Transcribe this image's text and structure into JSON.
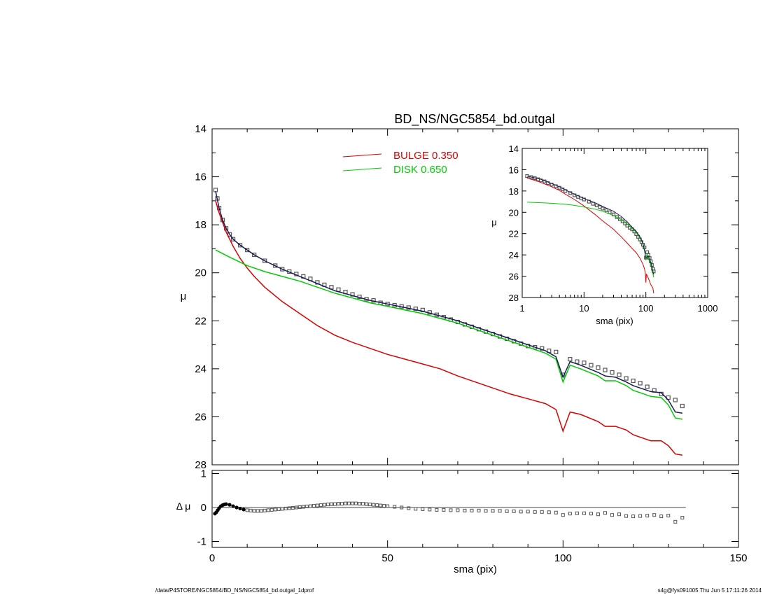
{
  "title": "BD_NS/NGC5854_bd.outgal",
  "footer": {
    "left": "/data/P4STORE/NGC5854/BD_NS/NGC5854_bd.outgal_1dprof",
    "right": "s4g@fys091005  Thu Jun  5 17:11:26 2014"
  },
  "chart_data": [
    {
      "type": "line",
      "panel": "main",
      "title": "BD_NS/NGC5854_bd.outgal",
      "xlabel": "",
      "ylabel": "μ",
      "xlim": [
        0,
        150
      ],
      "ylim": [
        28,
        14
      ],
      "y_inverted": true,
      "yticks": [
        14,
        16,
        18,
        20,
        22,
        24,
        26,
        28
      ],
      "legend": {
        "placement": "top-center",
        "entries": [
          {
            "label": "BULGE  0.350",
            "color": "#dd0000"
          },
          {
            "label": "DISK  0.650",
            "color": "#00cc00"
          }
        ]
      },
      "series": [
        {
          "name": "BULGE  0.350",
          "color": "#dd0000",
          "style": "line",
          "x": [
            1,
            2,
            3,
            4,
            5,
            6,
            8,
            10,
            12,
            15,
            20,
            25,
            30,
            35,
            40,
            45,
            50,
            55,
            60,
            65,
            70,
            75,
            80,
            85,
            90,
            95,
            98,
            100,
            102,
            105,
            110,
            112,
            115,
            118,
            120,
            122,
            125,
            128,
            130,
            132,
            134
          ],
          "y": [
            17.0,
            17.5,
            17.9,
            18.3,
            18.6,
            18.9,
            19.4,
            19.8,
            20.15,
            20.6,
            21.2,
            21.7,
            22.2,
            22.6,
            22.9,
            23.15,
            23.4,
            23.6,
            23.8,
            24.0,
            24.3,
            24.55,
            24.8,
            25.05,
            25.25,
            25.45,
            25.7,
            26.6,
            25.8,
            25.9,
            26.2,
            26.4,
            26.4,
            26.55,
            26.75,
            26.85,
            27.0,
            27.0,
            27.2,
            27.55,
            27.6
          ]
        },
        {
          "name": "DISK  0.650",
          "color": "#00cc00",
          "style": "line",
          "x": [
            1,
            5,
            10,
            15,
            20,
            25,
            30,
            35,
            40,
            45,
            50,
            55,
            60,
            65,
            70,
            75,
            80,
            85,
            90,
            95,
            98,
            100,
            102,
            105,
            110,
            112,
            115,
            118,
            120,
            122,
            125,
            128,
            130,
            132,
            134
          ],
          "y": [
            19.05,
            19.35,
            19.7,
            19.95,
            20.15,
            20.35,
            20.6,
            20.85,
            21.05,
            21.25,
            21.4,
            21.55,
            21.7,
            21.9,
            22.1,
            22.35,
            22.6,
            22.85,
            23.1,
            23.35,
            23.6,
            24.55,
            23.85,
            24.0,
            24.3,
            24.5,
            24.5,
            24.7,
            24.9,
            25.0,
            25.15,
            25.2,
            25.5,
            26.05,
            26.1
          ]
        },
        {
          "name": "total model",
          "color": "#1a1a55",
          "style": "line",
          "x": [
            1,
            2,
            3,
            4,
            5,
            6,
            8,
            10,
            12,
            15,
            20,
            25,
            30,
            35,
            40,
            45,
            50,
            55,
            60,
            65,
            70,
            75,
            80,
            85,
            90,
            95,
            98,
            100,
            102,
            105,
            110,
            112,
            115,
            118,
            120,
            122,
            125,
            128,
            130,
            132,
            134
          ],
          "y": [
            16.6,
            17.3,
            17.8,
            18.15,
            18.4,
            18.6,
            18.85,
            19.05,
            19.25,
            19.5,
            19.85,
            20.15,
            20.45,
            20.75,
            20.95,
            21.15,
            21.3,
            21.45,
            21.6,
            21.8,
            22.0,
            22.25,
            22.5,
            22.75,
            23.0,
            23.25,
            23.5,
            24.35,
            23.7,
            23.85,
            24.15,
            24.3,
            24.35,
            24.55,
            24.7,
            24.8,
            24.95,
            25.0,
            25.3,
            25.8,
            25.85
          ]
        },
        {
          "name": "observed",
          "color": "#555555",
          "style": "markers",
          "x": [
            1,
            1.5,
            2,
            3,
            4,
            5,
            6,
            8,
            10,
            12,
            15,
            18,
            20,
            22,
            24,
            26,
            28,
            30,
            32,
            34,
            36,
            38,
            40,
            42,
            44,
            46,
            48,
            50,
            52,
            54,
            56,
            58,
            60,
            62,
            64,
            66,
            68,
            70,
            72,
            74,
            76,
            78,
            80,
            82,
            84,
            86,
            88,
            90,
            92,
            94,
            96,
            98,
            100,
            102,
            104,
            106,
            108,
            110,
            112,
            114,
            116,
            118,
            120,
            122,
            124,
            126,
            128,
            130,
            132,
            134
          ],
          "y": [
            16.55,
            16.9,
            17.3,
            17.8,
            18.15,
            18.4,
            18.6,
            18.85,
            19.05,
            19.25,
            19.5,
            19.7,
            19.85,
            19.95,
            20.05,
            20.15,
            20.25,
            20.4,
            20.5,
            20.6,
            20.7,
            20.8,
            20.9,
            21.0,
            21.1,
            21.15,
            21.25,
            21.3,
            21.35,
            21.4,
            21.45,
            21.5,
            21.55,
            21.65,
            21.75,
            21.85,
            21.95,
            22.05,
            22.15,
            22.25,
            22.35,
            22.45,
            22.55,
            22.65,
            22.75,
            22.85,
            22.95,
            23.05,
            23.1,
            23.15,
            23.25,
            23.3,
            24.25,
            23.6,
            23.7,
            23.75,
            23.85,
            23.95,
            24.05,
            24.15,
            24.25,
            24.4,
            24.5,
            24.6,
            24.75,
            24.9,
            25.05,
            25.2,
            25.3,
            25.55
          ]
        }
      ]
    },
    {
      "type": "line",
      "panel": "inset",
      "xlabel": "sma (pix)",
      "ylabel": "μ",
      "xscale": "log",
      "xlim": [
        1,
        1000
      ],
      "xticks": [
        "1",
        "10",
        "100",
        "1000"
      ],
      "ylim": [
        28,
        14
      ],
      "y_inverted": true,
      "yticks": [
        14,
        16,
        18,
        20,
        22,
        24,
        26,
        28
      ],
      "series": [
        {
          "name": "bulge",
          "color": "#dd0000",
          "x": [
            1.2,
            1.5,
            2,
            3,
            4,
            5,
            7,
            10,
            15,
            20,
            30,
            40,
            50,
            60,
            70,
            80,
            90,
            95,
            98,
            100,
            102,
            110,
            120,
            130,
            134
          ],
          "y": [
            16.8,
            16.95,
            17.2,
            17.6,
            17.95,
            18.3,
            18.8,
            19.4,
            20.2,
            20.8,
            21.6,
            22.3,
            22.9,
            23.4,
            23.8,
            24.3,
            24.9,
            25.3,
            25.7,
            26.6,
            25.8,
            26.2,
            26.8,
            27.1,
            27.6
          ]
        },
        {
          "name": "disk",
          "color": "#00cc00",
          "x": [
            1.2,
            2,
            3,
            5,
            7,
            10,
            15,
            20,
            30,
            40,
            50,
            60,
            70,
            80,
            90,
            95,
            100,
            105,
            110,
            120,
            134
          ],
          "y": [
            19.05,
            19.1,
            19.15,
            19.25,
            19.35,
            19.5,
            19.7,
            19.9,
            20.3,
            20.7,
            21.1,
            21.5,
            21.9,
            22.4,
            23.0,
            23.4,
            24.5,
            23.9,
            24.3,
            24.9,
            26.1
          ]
        },
        {
          "name": "total",
          "color": "#1a1a55",
          "x": [
            1.2,
            2,
            3,
            4,
            5,
            7,
            10,
            15,
            20,
            30,
            40,
            50,
            60,
            70,
            80,
            90,
            100,
            110,
            120,
            134
          ],
          "y": [
            16.6,
            16.9,
            17.3,
            17.6,
            17.9,
            18.3,
            18.7,
            19.1,
            19.45,
            19.9,
            20.4,
            20.9,
            21.4,
            21.8,
            22.3,
            22.9,
            24.3,
            24.1,
            24.7,
            25.85
          ]
        },
        {
          "name": "observed",
          "color": "#555555",
          "style": "markers",
          "x": [
            1.2,
            1.4,
            1.6,
            1.8,
            2,
            2.3,
            2.6,
            3,
            3.5,
            4,
            4.5,
            5,
            6,
            7,
            8,
            9,
            10,
            12,
            14,
            16,
            18,
            20,
            23,
            26,
            30,
            34,
            38,
            42,
            46,
            50,
            55,
            60,
            65,
            70,
            75,
            80,
            85,
            90,
            95,
            100,
            105,
            110,
            115,
            120,
            125,
            130,
            134
          ],
          "y": [
            16.6,
            16.7,
            16.8,
            16.9,
            17.0,
            17.1,
            17.25,
            17.4,
            17.55,
            17.7,
            17.85,
            18.0,
            18.2,
            18.4,
            18.55,
            18.7,
            18.8,
            19.0,
            19.2,
            19.35,
            19.5,
            19.65,
            19.8,
            20.0,
            20.2,
            20.45,
            20.65,
            20.85,
            21.05,
            21.25,
            21.45,
            21.6,
            21.8,
            22.05,
            22.3,
            22.55,
            22.8,
            23.05,
            23.3,
            24.25,
            23.75,
            24.0,
            24.3,
            24.6,
            24.95,
            25.3,
            25.55
          ]
        }
      ]
    },
    {
      "type": "scatter",
      "panel": "residual",
      "xlabel": "sma (pix)",
      "ylabel": "Δ μ",
      "xlim": [
        0,
        150
      ],
      "xticks": [
        0,
        50,
        100,
        150
      ],
      "ylim": [
        -1,
        1
      ],
      "yticks": [
        -1,
        0,
        1
      ],
      "zero_line": {
        "x_end": 135
      },
      "series": [
        {
          "name": "residual",
          "color": "#555555",
          "x": [
            0.8,
            1.2,
            1.6,
            2,
            2.5,
            3,
            3.5,
            4,
            5,
            6,
            7,
            8,
            9,
            10,
            11,
            12,
            13,
            14,
            15,
            16,
            17,
            18,
            19,
            20,
            21,
            22,
            23,
            24,
            25,
            26,
            27,
            28,
            29,
            30,
            31,
            32,
            33,
            34,
            35,
            36,
            37,
            38,
            39,
            40,
            41,
            42,
            43,
            44,
            45,
            46,
            47,
            48,
            49,
            50,
            52,
            54,
            56,
            58,
            60,
            62,
            64,
            66,
            68,
            70,
            72,
            74,
            76,
            78,
            80,
            82,
            84,
            86,
            88,
            90,
            92,
            94,
            96,
            98,
            100,
            102,
            104,
            106,
            108,
            110,
            112,
            114,
            116,
            118,
            120,
            122,
            124,
            126,
            128,
            130,
            132,
            134
          ],
          "y": [
            -0.18,
            -0.14,
            -0.08,
            -0.02,
            0.04,
            0.07,
            0.09,
            0.1,
            0.08,
            0.04,
            0.0,
            -0.03,
            -0.06,
            -0.08,
            -0.09,
            -0.1,
            -0.1,
            -0.1,
            -0.09,
            -0.08,
            -0.07,
            -0.06,
            -0.05,
            -0.04,
            -0.03,
            -0.02,
            -0.01,
            0.0,
            0.01,
            0.02,
            0.03,
            0.04,
            0.05,
            0.06,
            0.07,
            0.08,
            0.09,
            0.1,
            0.1,
            0.11,
            0.11,
            0.12,
            0.12,
            0.12,
            0.12,
            0.11,
            0.11,
            0.1,
            0.09,
            0.08,
            0.07,
            0.06,
            0.05,
            0.04,
            0.02,
            0.0,
            -0.02,
            -0.04,
            -0.05,
            -0.06,
            -0.07,
            -0.07,
            -0.08,
            -0.08,
            -0.09,
            -0.09,
            -0.09,
            -0.1,
            -0.1,
            -0.1,
            -0.11,
            -0.11,
            -0.12,
            -0.12,
            -0.13,
            -0.13,
            -0.14,
            -0.15,
            -0.22,
            -0.18,
            -0.17,
            -0.17,
            -0.18,
            -0.2,
            -0.16,
            -0.22,
            -0.2,
            -0.25,
            -0.26,
            -0.25,
            -0.24,
            -0.22,
            -0.26,
            -0.24,
            -0.42,
            -0.3
          ]
        }
      ]
    }
  ]
}
